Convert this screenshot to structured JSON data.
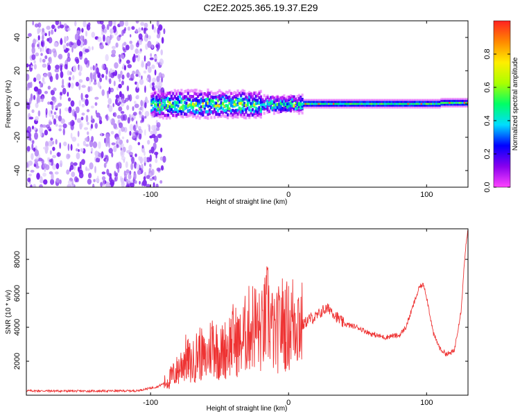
{
  "title": "C2E2.2025.365.19.37.E29",
  "colors": {
    "snr_line": "#ee3333",
    "colorbar_stops": [
      "#ff44ff",
      "#8800ee",
      "#0000ff",
      "#00ddff",
      "#00ff66",
      "#aaff00",
      "#ffee00",
      "#ff8800",
      "#ff2222"
    ]
  },
  "chart_data": [
    {
      "type": "heatmap",
      "name": "spectrogram",
      "xlabel": "Height of straight line (km)",
      "ylabel": "Frequency (Hz)",
      "xlim": [
        -190,
        130
      ],
      "ylim": [
        -50,
        50
      ],
      "xticks": [
        -100,
        0,
        100
      ],
      "yticks": [
        -40,
        -20,
        0,
        20,
        40
      ],
      "noise_region_x": [
        -190,
        -90
      ],
      "signal_center_freq": 0,
      "colorbar": {
        "label": "Normalized spectral amplitude",
        "range": [
          0,
          1
        ],
        "ticks": [
          0,
          0.2,
          0.4,
          0.6,
          0.8
        ]
      }
    },
    {
      "type": "line",
      "name": "snr",
      "xlabel": "Height of straight line (km)",
      "ylabel": "SNR (10 * v/v)",
      "xlim": [
        -190,
        130
      ],
      "ylim": [
        0,
        9800
      ],
      "xticks": [
        -100,
        0,
        100
      ],
      "yticks": [
        2000,
        4000,
        6000,
        8000
      ],
      "x": [
        -190,
        -150,
        -110,
        -95,
        -88,
        -80,
        -75,
        -70,
        -65,
        -60,
        -55,
        -50,
        -45,
        -40,
        -35,
        -30,
        -25,
        -20,
        -15,
        -10,
        -5,
        0,
        5,
        10,
        15,
        20,
        25,
        30,
        35,
        40,
        50,
        60,
        70,
        75,
        80,
        85,
        90,
        95,
        98,
        100,
        105,
        110,
        115,
        120,
        125,
        128,
        130
      ],
      "values": [
        260,
        240,
        260,
        500,
        800,
        1500,
        2200,
        1800,
        2600,
        2000,
        3200,
        2400,
        2800,
        3300,
        3000,
        3800,
        4200,
        3600,
        4800,
        3400,
        4300,
        4000,
        4700,
        4100,
        4500,
        4600,
        5000,
        5100,
        4600,
        4200,
        4000,
        3600,
        3400,
        3500,
        3500,
        4000,
        5200,
        6400,
        6500,
        5800,
        3600,
        2700,
        2400,
        2600,
        5000,
        8500,
        9700
      ]
    }
  ]
}
